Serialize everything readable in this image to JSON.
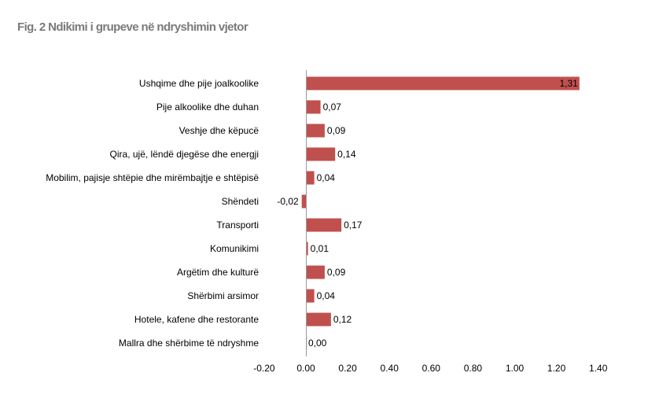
{
  "title": "Fig. 2 Ndikimi i grupeve në ndryshimin vjetor",
  "chart_data": {
    "type": "bar",
    "orientation": "horizontal",
    "categories": [
      "Ushqime dhe pije joalkoolike",
      "Pije alkoolike dhe duhan",
      "Veshje dhe këpucë",
      "Qira, ujë, lëndë djegëse dhe energji",
      "Mobilim, pajisje shtëpie dhe mirëmbajtje e shtëpisë",
      "Shëndeti",
      "Transporti",
      "Komunikimi",
      "Argëtim dhe kulturë",
      "Shërbimi arsimor",
      "Hotele, kafene dhe restorante",
      "Mallra dhe shërbime të ndryshme"
    ],
    "values": [
      1.31,
      0.07,
      0.09,
      0.14,
      0.04,
      -0.02,
      0.17,
      0.01,
      0.09,
      0.04,
      0.12,
      0.0
    ],
    "value_labels": [
      "1,31",
      "0,07",
      "0,09",
      "0,14",
      "0,04",
      "-0,02",
      "0,17",
      "0,01",
      "0,09",
      "0,04",
      "0,12",
      "0,00"
    ],
    "xlim": [
      -0.2,
      1.4
    ],
    "xticks": [
      -0.2,
      0.0,
      0.2,
      0.4,
      0.6,
      0.8,
      1.0,
      1.2,
      1.4
    ],
    "xtick_labels": [
      "-0.20",
      "0.00",
      "0.20",
      "0.40",
      "0.60",
      "0.80",
      "1.00",
      "1.20",
      "1.40"
    ],
    "bar_color": "#c0504d",
    "grid": false,
    "legend": "none"
  }
}
